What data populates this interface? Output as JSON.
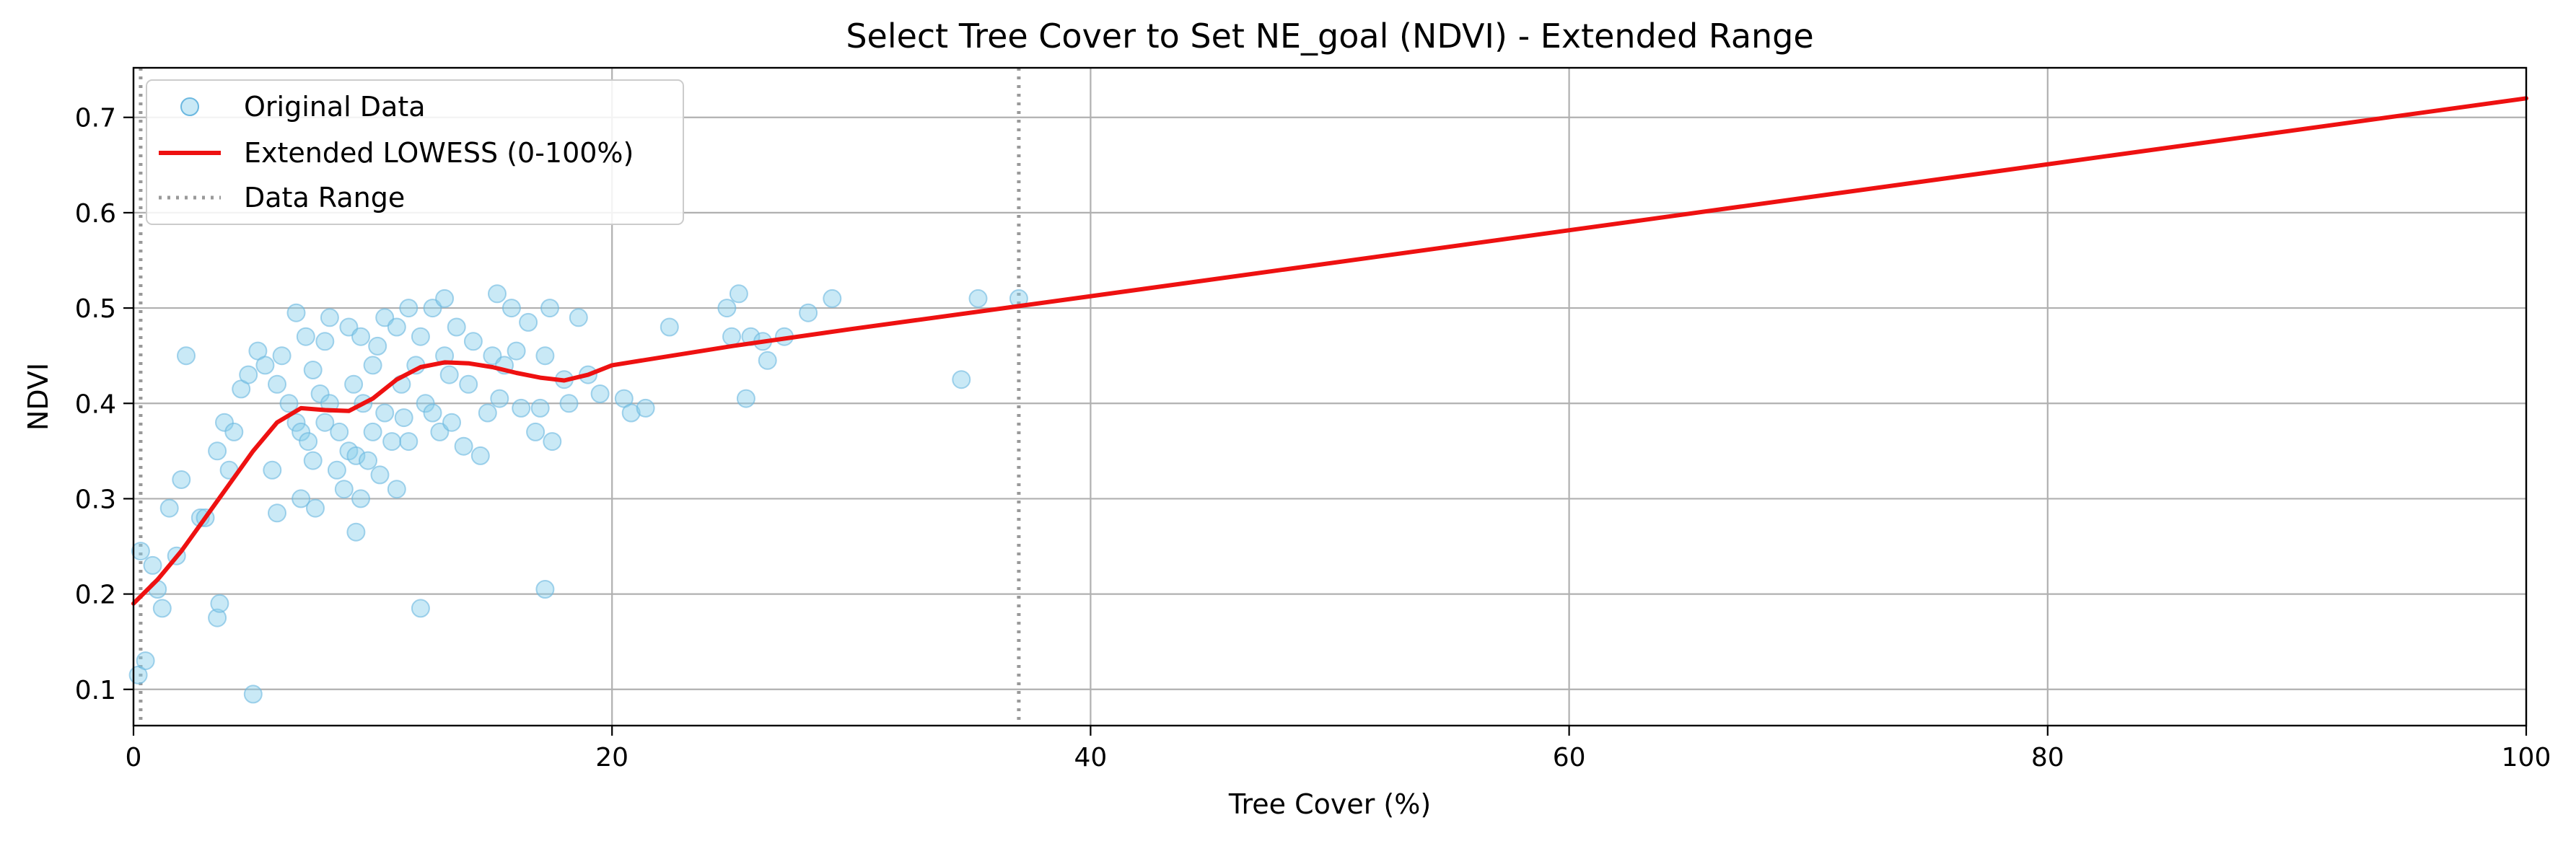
{
  "chart_data": {
    "type": "scatter",
    "title": "Select Tree Cover to Set NE_goal (NDVI) - Extended Range",
    "xlabel": "Tree Cover (%)",
    "ylabel": "NDVI",
    "xlim": [
      0,
      100
    ],
    "ylim": [
      0.062,
      0.752
    ],
    "grid": true,
    "legend_position": "upper-left",
    "x_ticks": [
      0,
      20,
      40,
      60,
      80,
      100
    ],
    "x_tick_labels": [
      "0",
      "20",
      "40",
      "60",
      "80",
      "100"
    ],
    "y_ticks": [
      0.1,
      0.2,
      0.3,
      0.4,
      0.5,
      0.6,
      0.7
    ],
    "y_tick_labels": [
      "0.1",
      "0.2",
      "0.3",
      "0.4",
      "0.5",
      "0.6",
      "0.7"
    ],
    "legend": [
      {
        "label": "Original Data",
        "kind": "marker"
      },
      {
        "label": "Extended LOWESS (0-100%)",
        "kind": "line"
      },
      {
        "label": "Data Range",
        "kind": "dotted"
      }
    ],
    "colors": {
      "points": "#87ceeb",
      "points_edge": "#6bb8e0",
      "lowess": "#ee1111",
      "data_range": "#999999",
      "grid": "#b0b0b0"
    },
    "data_range": [
      0.3,
      37
    ],
    "series": [
      {
        "name": "Original Data",
        "type": "scatter",
        "points": [
          [
            0.2,
            0.115
          ],
          [
            0.5,
            0.13
          ],
          [
            0.3,
            0.245
          ],
          [
            0.8,
            0.23
          ],
          [
            1.0,
            0.205
          ],
          [
            1.2,
            0.185
          ],
          [
            1.5,
            0.29
          ],
          [
            1.8,
            0.24
          ],
          [
            2.0,
            0.32
          ],
          [
            2.2,
            0.45
          ],
          [
            2.8,
            0.28
          ],
          [
            3.0,
            0.28
          ],
          [
            3.5,
            0.35
          ],
          [
            3.5,
            0.175
          ],
          [
            3.6,
            0.19
          ],
          [
            3.8,
            0.38
          ],
          [
            4.0,
            0.33
          ],
          [
            4.2,
            0.37
          ],
          [
            4.5,
            0.415
          ],
          [
            4.8,
            0.43
          ],
          [
            5.0,
            0.095
          ],
          [
            5.2,
            0.455
          ],
          [
            5.5,
            0.44
          ],
          [
            5.8,
            0.33
          ],
          [
            6.0,
            0.42
          ],
          [
            6.0,
            0.285
          ],
          [
            6.2,
            0.45
          ],
          [
            6.5,
            0.4
          ],
          [
            6.8,
            0.495
          ],
          [
            6.8,
            0.38
          ],
          [
            7.0,
            0.3
          ],
          [
            7.0,
            0.37
          ],
          [
            7.2,
            0.47
          ],
          [
            7.3,
            0.36
          ],
          [
            7.5,
            0.435
          ],
          [
            7.5,
            0.34
          ],
          [
            7.6,
            0.29
          ],
          [
            7.8,
            0.41
          ],
          [
            8.0,
            0.465
          ],
          [
            8.0,
            0.38
          ],
          [
            8.2,
            0.49
          ],
          [
            8.2,
            0.4
          ],
          [
            8.5,
            0.33
          ],
          [
            8.6,
            0.37
          ],
          [
            8.8,
            0.31
          ],
          [
            9.0,
            0.48
          ],
          [
            9.0,
            0.35
          ],
          [
            9.2,
            0.42
          ],
          [
            9.3,
            0.345
          ],
          [
            9.3,
            0.265
          ],
          [
            9.5,
            0.3
          ],
          [
            9.5,
            0.47
          ],
          [
            9.6,
            0.4
          ],
          [
            9.8,
            0.34
          ],
          [
            10.0,
            0.44
          ],
          [
            10.0,
            0.37
          ],
          [
            10.2,
            0.46
          ],
          [
            10.3,
            0.325
          ],
          [
            10.5,
            0.49
          ],
          [
            10.5,
            0.39
          ],
          [
            10.8,
            0.36
          ],
          [
            11.0,
            0.48
          ],
          [
            11.0,
            0.31
          ],
          [
            11.2,
            0.42
          ],
          [
            11.3,
            0.385
          ],
          [
            11.5,
            0.5
          ],
          [
            11.5,
            0.36
          ],
          [
            11.8,
            0.44
          ],
          [
            12.0,
            0.185
          ],
          [
            12.0,
            0.47
          ],
          [
            12.2,
            0.4
          ],
          [
            12.5,
            0.5
          ],
          [
            12.5,
            0.39
          ],
          [
            12.8,
            0.37
          ],
          [
            13.0,
            0.51
          ],
          [
            13.0,
            0.45
          ],
          [
            13.2,
            0.43
          ],
          [
            13.3,
            0.38
          ],
          [
            13.5,
            0.48
          ],
          [
            13.8,
            0.355
          ],
          [
            14.0,
            0.42
          ],
          [
            14.2,
            0.465
          ],
          [
            14.5,
            0.345
          ],
          [
            14.8,
            0.39
          ],
          [
            15.0,
            0.45
          ],
          [
            15.2,
            0.515
          ],
          [
            15.3,
            0.405
          ],
          [
            15.5,
            0.44
          ],
          [
            15.8,
            0.5
          ],
          [
            16.0,
            0.455
          ],
          [
            16.2,
            0.395
          ],
          [
            16.5,
            0.485
          ],
          [
            16.8,
            0.37
          ],
          [
            17.0,
            0.395
          ],
          [
            17.2,
            0.45
          ],
          [
            17.2,
            0.205
          ],
          [
            17.4,
            0.5
          ],
          [
            17.5,
            0.36
          ],
          [
            18.0,
            0.425
          ],
          [
            18.2,
            0.4
          ],
          [
            18.6,
            0.49
          ],
          [
            19.0,
            0.43
          ],
          [
            19.5,
            0.41
          ],
          [
            20.5,
            0.405
          ],
          [
            20.8,
            0.39
          ],
          [
            21.4,
            0.395
          ],
          [
            22.4,
            0.48
          ],
          [
            24.8,
            0.5
          ],
          [
            25.0,
            0.47
          ],
          [
            25.3,
            0.515
          ],
          [
            25.6,
            0.405
          ],
          [
            25.8,
            0.47
          ],
          [
            26.3,
            0.465
          ],
          [
            26.5,
            0.445
          ],
          [
            27.2,
            0.47
          ],
          [
            28.2,
            0.495
          ],
          [
            29.2,
            0.51
          ],
          [
            34.6,
            0.425
          ],
          [
            35.3,
            0.51
          ],
          [
            37.0,
            0.51
          ]
        ]
      },
      {
        "name": "Extended LOWESS (0-100%)",
        "type": "line",
        "points": [
          [
            0,
            0.19
          ],
          [
            1,
            0.215
          ],
          [
            2,
            0.245
          ],
          [
            3,
            0.28
          ],
          [
            4,
            0.315
          ],
          [
            5,
            0.35
          ],
          [
            6,
            0.38
          ],
          [
            7,
            0.395
          ],
          [
            8,
            0.393
          ],
          [
            9,
            0.392
          ],
          [
            10,
            0.405
          ],
          [
            11,
            0.425
          ],
          [
            12,
            0.438
          ],
          [
            13,
            0.443
          ],
          [
            14,
            0.442
          ],
          [
            15,
            0.438
          ],
          [
            16,
            0.432
          ],
          [
            17,
            0.427
          ],
          [
            18,
            0.424
          ],
          [
            19,
            0.43
          ],
          [
            20,
            0.44
          ],
          [
            25,
            0.46
          ],
          [
            30,
            0.478
          ],
          [
            37,
            0.502
          ],
          [
            100,
            0.72
          ]
        ]
      }
    ]
  }
}
